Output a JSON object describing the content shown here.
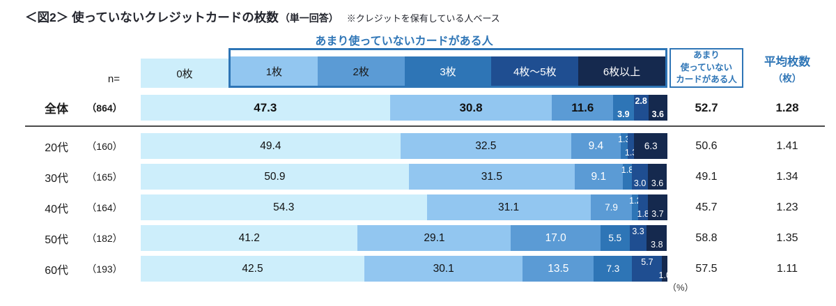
{
  "page": {
    "title_main": "＜図2＞ 使っていないクレジットカードの枚数",
    "title_sub": "（単一回答）",
    "title_note": "※クレジットを保有している人ベース",
    "n_label": "n=",
    "unit_label": "（%）"
  },
  "header": {
    "group_title": "あまり使っていないカードがある人",
    "unused_col_lines": [
      "あまり",
      "使っていない",
      "カードがある人"
    ],
    "avg_col_lines": [
      "平均枚数",
      "（枚）"
    ]
  },
  "colors": {
    "accent_blue": "#2E75B6",
    "separator_gray": "#4a4a4a"
  },
  "chart_data": {
    "type": "bar",
    "stacked": true,
    "orientation": "horizontal",
    "unit": "%",
    "title": "使っていないクレジットカードの枚数",
    "xlim": [
      0,
      100
    ],
    "categories": [
      "0枚",
      "1枚",
      "2枚",
      "3枚",
      "4枚～5枚",
      "6枚以上"
    ],
    "colors": [
      "#CDEEFB",
      "#92C6F0",
      "#5B9BD5",
      "#2E75B6",
      "#1F4E91",
      "#15294E"
    ],
    "legend_text_colors": [
      "#1a1a1a",
      "#1a1a1a",
      "#1a1a1a",
      "#ffffff",
      "#ffffff",
      "#ffffff"
    ],
    "right_column_headers": [
      "あまり使っていないカードがある人",
      "平均枚数（枚）"
    ],
    "rows": [
      {
        "label": "全体",
        "n": "（864）",
        "values": [
          47.3,
          30.8,
          11.6,
          3.9,
          2.8,
          3.6
        ],
        "label_pos": [
          "c",
          "c",
          "c",
          "b",
          "t",
          "b"
        ],
        "unused": "52.7",
        "avg": "1.28",
        "emphasis": true
      },
      {
        "label": "20代",
        "n": "（160）",
        "values": [
          49.4,
          32.5,
          9.4,
          1.3,
          1.3,
          6.3
        ],
        "label_pos": [
          "c",
          "c",
          "c",
          "t",
          "b",
          "c"
        ],
        "unused": "50.6",
        "avg": "1.41",
        "emphasis": false
      },
      {
        "label": "30代",
        "n": "（165）",
        "values": [
          50.9,
          31.5,
          9.1,
          1.8,
          3.0,
          3.6
        ],
        "label_pos": [
          "c",
          "c",
          "c",
          "t",
          "b",
          "b"
        ],
        "unused": "49.1",
        "avg": "1.34",
        "emphasis": false
      },
      {
        "label": "40代",
        "n": "（164）",
        "values": [
          54.3,
          31.1,
          7.9,
          1.2,
          1.8,
          3.7
        ],
        "label_pos": [
          "c",
          "c",
          "c",
          "t",
          "b",
          "b"
        ],
        "unused": "45.7",
        "avg": "1.23",
        "emphasis": false
      },
      {
        "label": "50代",
        "n": "（182）",
        "values": [
          41.2,
          29.1,
          17.0,
          5.5,
          3.3,
          3.8
        ],
        "label_pos": [
          "c",
          "c",
          "c",
          "c",
          "t",
          "b"
        ],
        "unused": "58.8",
        "avg": "1.35",
        "emphasis": false
      },
      {
        "label": "60代",
        "n": "（193）",
        "values": [
          42.5,
          30.1,
          13.5,
          7.3,
          5.7,
          1.0
        ],
        "label_pos": [
          "c",
          "c",
          "c",
          "c",
          "t",
          "b"
        ],
        "unused": "57.5",
        "avg": "1.11",
        "emphasis": false
      }
    ]
  }
}
